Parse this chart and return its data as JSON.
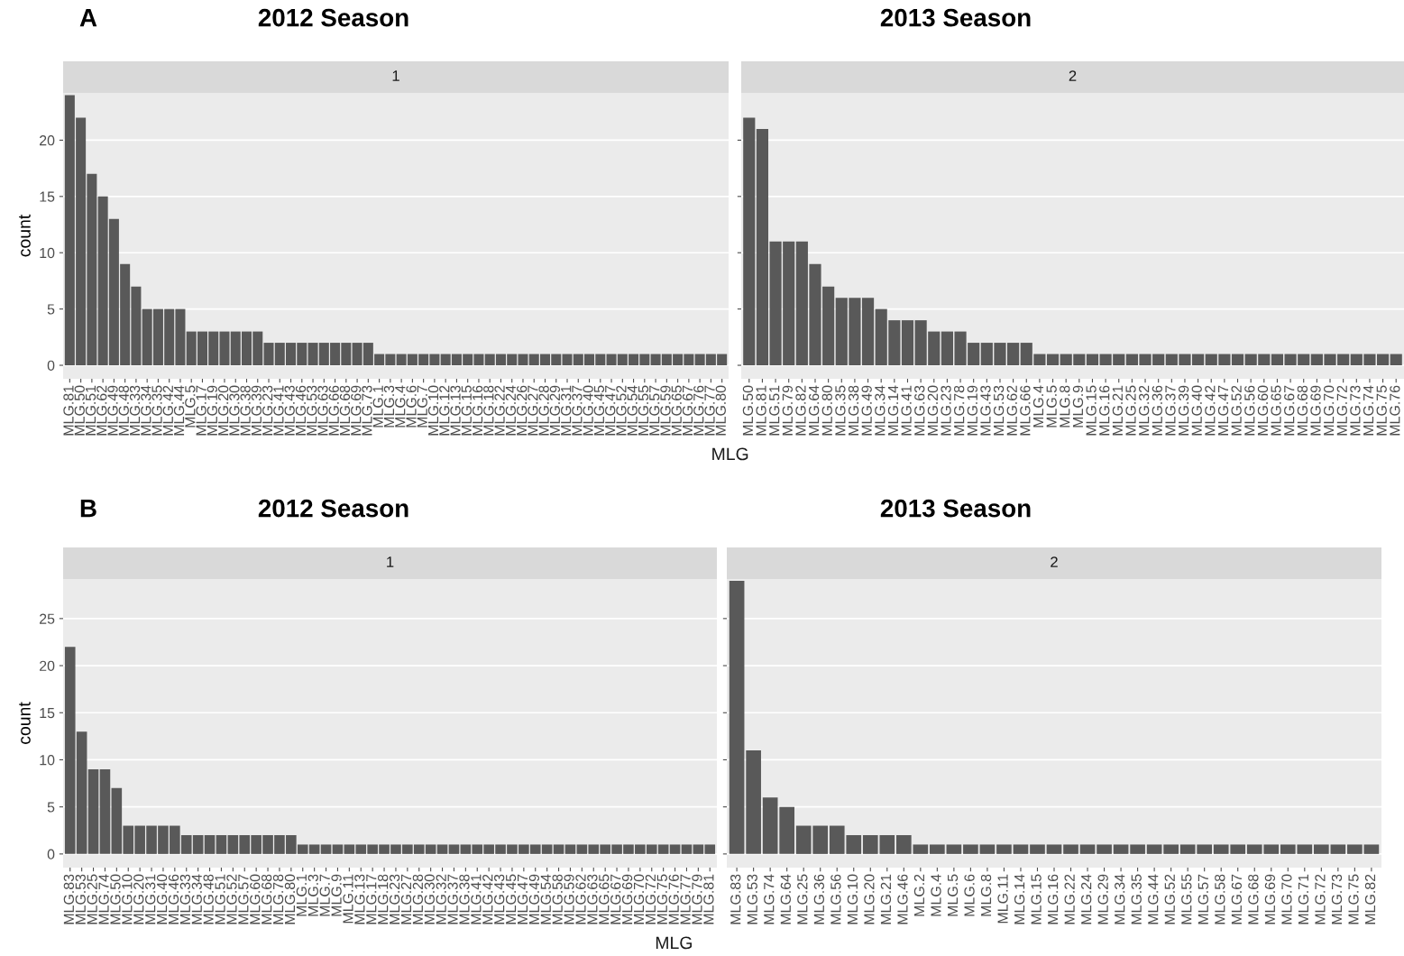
{
  "chart_data": [
    {
      "type": "bar",
      "title": "2012 Season",
      "subtitle": "1",
      "annotations": [
        "A"
      ],
      "xlabel": "MLG",
      "ylabel": "count",
      "color": "#595959",
      "grid": "y",
      "categories": [
        "MLG.81",
        "MLG.50",
        "MLG.51",
        "MLG.62",
        "MLG.49",
        "MLG.48",
        "MLG.33",
        "MLG.34",
        "MLG.35",
        "MLG.42",
        "MLG.44",
        "MLG.5",
        "MLG.17",
        "MLG.19",
        "MLG.20",
        "MLG.30",
        "MLG.38",
        "MLG.39",
        "MLG.23",
        "MLG.41",
        "MLG.43",
        "MLG.46",
        "MLG.53",
        "MLG.63",
        "MLG.66",
        "MLG.68",
        "MLG.69",
        "MLG.73",
        "MLG.1",
        "MLG.3",
        "MLG.4",
        "MLG.6",
        "MLG.7",
        "MLG.10",
        "MLG.12",
        "MLG.13",
        "MLG.15",
        "MLG.16",
        "MLG.18",
        "MLG.22",
        "MLG.24",
        "MLG.26",
        "MLG.27",
        "MLG.28",
        "MLG.29",
        "MLG.31",
        "MLG.37",
        "MLG.40",
        "MLG.45",
        "MLG.47",
        "MLG.52",
        "MLG.54",
        "MLG.55",
        "MLG.57",
        "MLG.59",
        "MLG.65",
        "MLG.67",
        "MLG.76",
        "MLG.77",
        "MLG.80"
      ],
      "values": [
        24,
        22,
        17,
        15,
        13,
        9,
        7,
        5,
        5,
        5,
        5,
        3,
        3,
        3,
        3,
        3,
        3,
        3,
        2,
        2,
        2,
        2,
        2,
        2,
        2,
        2,
        2,
        2,
        1,
        1,
        1,
        1,
        1,
        1,
        1,
        1,
        1,
        1,
        1,
        1,
        1,
        1,
        1,
        1,
        1,
        1,
        1,
        1,
        1,
        1,
        1,
        1,
        1,
        1,
        1,
        1,
        1,
        1,
        1,
        1
      ],
      "ylim": [
        -1.2,
        24.2
      ],
      "yticks": [
        0,
        5,
        10,
        15,
        20
      ]
    },
    {
      "type": "bar",
      "title": "2013 Season",
      "subtitle": "2",
      "color": "#595959",
      "grid": "y",
      "tick_labels": "x",
      "categories": [
        "MLG.50",
        "MLG.81",
        "MLG.51",
        "MLG.79",
        "MLG.82",
        "MLG.64",
        "MLG.80",
        "MLG.35",
        "MLG.38",
        "MLG.49",
        "MLG.34",
        "MLG.14",
        "MLG.41",
        "MLG.63",
        "MLG.20",
        "MLG.23",
        "MLG.78",
        "MLG.19",
        "MLG.43",
        "MLG.53",
        "MLG.62",
        "MLG.66",
        "MLG.4",
        "MLG.5",
        "MLG.8",
        "MLG.9",
        "MLG.15",
        "MLG.16",
        "MLG.21",
        "MLG.25",
        "MLG.32",
        "MLG.36",
        "MLG.37",
        "MLG.39",
        "MLG.40",
        "MLG.42",
        "MLG.47",
        "MLG.52",
        "MLG.56",
        "MLG.60",
        "MLG.65",
        "MLG.67",
        "MLG.68",
        "MLG.69",
        "MLG.70",
        "MLG.72",
        "MLG.73",
        "MLG.74",
        "MLG.75",
        "MLG.76"
      ],
      "values": [
        22,
        21,
        11,
        11,
        11,
        9,
        7,
        6,
        6,
        6,
        5,
        4,
        4,
        4,
        3,
        3,
        3,
        2,
        2,
        2,
        2,
        2,
        1,
        1,
        1,
        1,
        1,
        1,
        1,
        1,
        1,
        1,
        1,
        1,
        1,
        1,
        1,
        1,
        1,
        1,
        1,
        1,
        1,
        1,
        1,
        1,
        1,
        1,
        1,
        1
      ],
      "ylim": [
        -1.2,
        24.2
      ],
      "yticks": [
        0,
        5,
        10,
        15,
        20
      ]
    },
    {
      "type": "bar",
      "title": "2012 Season",
      "subtitle": "1",
      "annotations": [
        "B"
      ],
      "xlabel": "MLG",
      "ylabel": "count",
      "color": "#595959",
      "grid": "y",
      "categories": [
        "MLG.83",
        "MLG.53",
        "MLG.25",
        "MLG.74",
        "MLG.50",
        "MLG.10",
        "MLG.20",
        "MLG.31",
        "MLG.40",
        "MLG.46",
        "MLG.33",
        "MLG.34",
        "MLG.48",
        "MLG.51",
        "MLG.52",
        "MLG.57",
        "MLG.60",
        "MLG.68",
        "MLG.78",
        "MLG.80",
        "MLG.1",
        "MLG.3",
        "MLG.7",
        "MLG.9",
        "MLG.11",
        "MLG.13",
        "MLG.17",
        "MLG.18",
        "MLG.23",
        "MLG.27",
        "MLG.28",
        "MLG.30",
        "MLG.32",
        "MLG.37",
        "MLG.38",
        "MLG.41",
        "MLG.42",
        "MLG.43",
        "MLG.45",
        "MLG.47",
        "MLG.49",
        "MLG.54",
        "MLG.58",
        "MLG.59",
        "MLG.62",
        "MLG.63",
        "MLG.65",
        "MLG.67",
        "MLG.69",
        "MLG.70",
        "MLG.72",
        "MLG.75",
        "MLG.76",
        "MLG.77",
        "MLG.79",
        "MLG.81"
      ],
      "values": [
        22,
        13,
        9,
        9,
        7,
        3,
        3,
        3,
        3,
        3,
        2,
        2,
        2,
        2,
        2,
        2,
        2,
        2,
        2,
        2,
        1,
        1,
        1,
        1,
        1,
        1,
        1,
        1,
        1,
        1,
        1,
        1,
        1,
        1,
        1,
        1,
        1,
        1,
        1,
        1,
        1,
        1,
        1,
        1,
        1,
        1,
        1,
        1,
        1,
        1,
        1,
        1,
        1,
        1,
        1,
        1
      ],
      "ylim": [
        -1.45,
        29.2
      ],
      "yticks": [
        0,
        5,
        10,
        15,
        20,
        25
      ]
    },
    {
      "type": "bar",
      "title": "2013 Season",
      "subtitle": "2",
      "color": "#595959",
      "grid": "y",
      "tick_labels": "x",
      "categories": [
        "MLG.83",
        "MLG.53",
        "MLG.74",
        "MLG.64",
        "MLG.25",
        "MLG.36",
        "MLG.56",
        "MLG.10",
        "MLG.20",
        "MLG.21",
        "MLG.46",
        "MLG.2",
        "MLG.4",
        "MLG.5",
        "MLG.6",
        "MLG.8",
        "MLG.11",
        "MLG.14",
        "MLG.15",
        "MLG.16",
        "MLG.22",
        "MLG.24",
        "MLG.29",
        "MLG.34",
        "MLG.35",
        "MLG.44",
        "MLG.52",
        "MLG.55",
        "MLG.57",
        "MLG.58",
        "MLG.67",
        "MLG.68",
        "MLG.69",
        "MLG.70",
        "MLG.71",
        "MLG.72",
        "MLG.73",
        "MLG.75",
        "MLG.82"
      ],
      "values": [
        29,
        11,
        6,
        5,
        3,
        3,
        3,
        2,
        2,
        2,
        2,
        1,
        1,
        1,
        1,
        1,
        1,
        1,
        1,
        1,
        1,
        1,
        1,
        1,
        1,
        1,
        1,
        1,
        1,
        1,
        1,
        1,
        1,
        1,
        1,
        1,
        1,
        1,
        1
      ],
      "ylim": [
        -1.45,
        29.2
      ],
      "yticks": [
        0,
        5,
        10,
        15,
        20,
        25
      ]
    }
  ]
}
